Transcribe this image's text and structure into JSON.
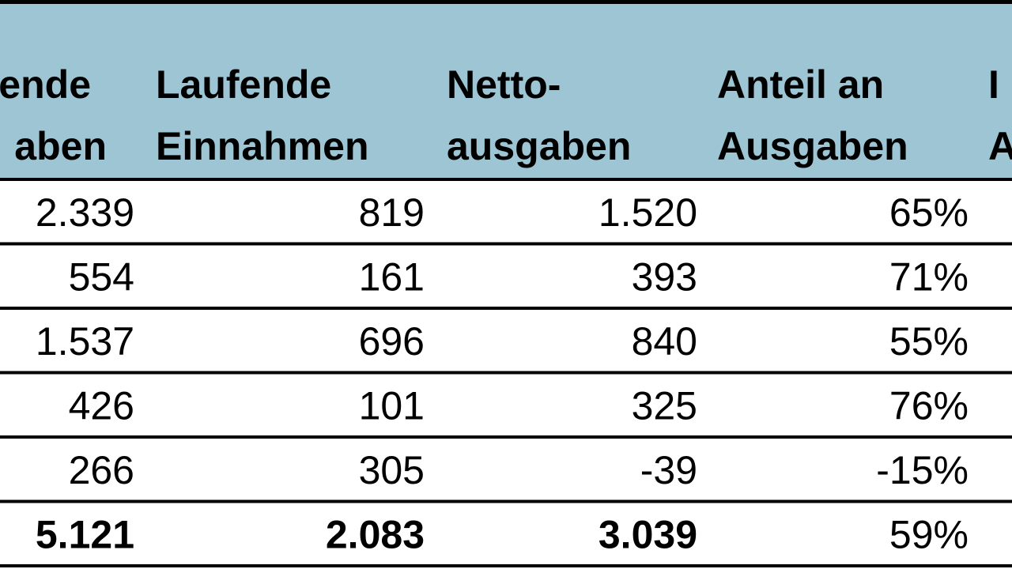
{
  "table": {
    "header": [
      [
        "ende",
        "aben"
      ],
      [
        "Laufende",
        "Einnahmen"
      ],
      [
        "Netto-",
        "ausgaben"
      ],
      [
        "Anteil an",
        "Ausgaben"
      ],
      [
        "I",
        "A"
      ]
    ],
    "rows": [
      [
        "2.339",
        "819",
        "1.520",
        "65%"
      ],
      [
        "554",
        "161",
        "393",
        "71%"
      ],
      [
        "1.537",
        "696",
        "840",
        "55%"
      ],
      [
        "426",
        "101",
        "325",
        "76%"
      ],
      [
        "266",
        "305",
        "-39",
        "-15%"
      ],
      [
        "5.121",
        "2.083",
        "3.039",
        "59%"
      ]
    ]
  }
}
